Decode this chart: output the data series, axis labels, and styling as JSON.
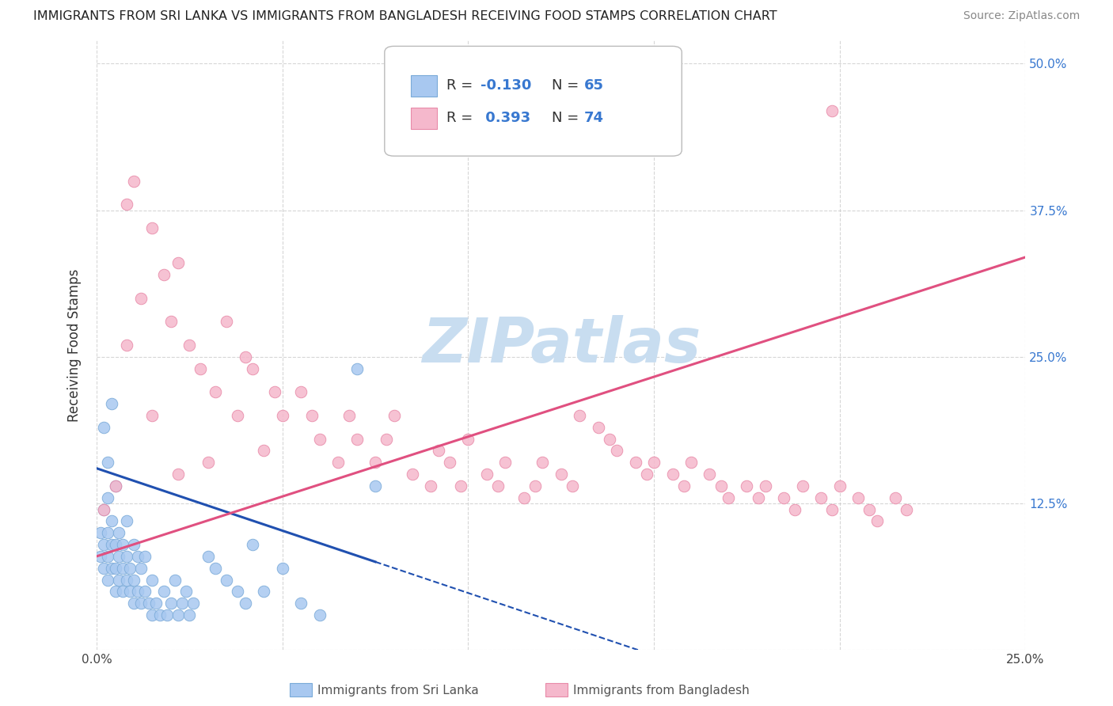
{
  "title": "IMMIGRANTS FROM SRI LANKA VS IMMIGRANTS FROM BANGLADESH RECEIVING FOOD STAMPS CORRELATION CHART",
  "source": "Source: ZipAtlas.com",
  "ylabel": "Receiving Food Stamps",
  "sri_lanka_color": "#A8C8F0",
  "sri_lanka_edge": "#7AAAD8",
  "bangladesh_color": "#F5B8CC",
  "bangladesh_edge": "#E88AA8",
  "sri_lanka_R": -0.13,
  "sri_lanka_N": 65,
  "bangladesh_R": 0.393,
  "bangladesh_N": 74,
  "sri_lanka_label": "Immigrants from Sri Lanka",
  "bangladesh_label": "Immigrants from Bangladesh",
  "watermark": "ZIPatlas",
  "watermark_color": "#C8DDF0",
  "grid_color": "#CCCCCC",
  "legend_color": "#3878D0",
  "blue_line_color": "#2050B0",
  "pink_line_color": "#E05080",
  "xlim": [
    0.0,
    0.25
  ],
  "ylim": [
    0.0,
    0.52
  ],
  "x_ticks": [
    0.0,
    0.05,
    0.1,
    0.15,
    0.2,
    0.25
  ],
  "y_ticks": [
    0.0,
    0.125,
    0.25,
    0.375,
    0.5
  ]
}
